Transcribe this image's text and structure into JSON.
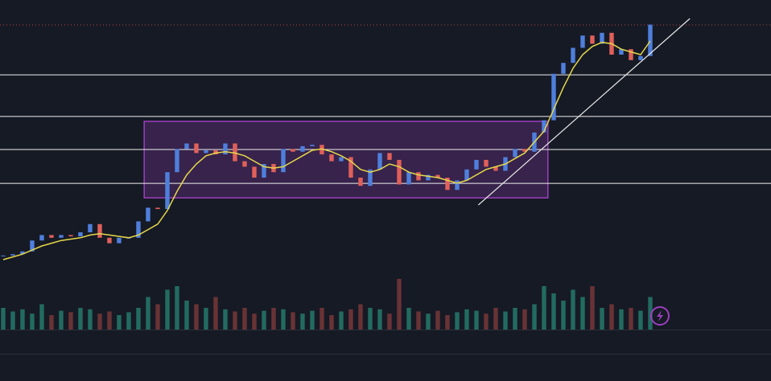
{
  "chart_data": {
    "type": "candlestick",
    "closes": [
      6.5,
      7,
      8,
      12,
      14,
      13,
      14,
      13.5,
      15,
      18,
      13,
      11,
      13,
      13,
      19,
      24,
      23.5,
      37,
      45.5,
      47.5,
      44,
      45,
      43.5,
      47.5,
      41,
      39,
      35,
      40,
      37,
      45.5,
      44.5,
      46.5,
      47,
      43.5,
      41,
      42.5,
      35,
      32,
      38,
      44,
      41.5,
      32.5,
      37,
      34,
      36,
      35,
      30.5,
      34,
      38,
      41.5,
      39,
      37.5,
      42.5,
      45.5,
      44.5,
      51.5,
      56,
      73,
      77,
      82.5,
      87,
      84,
      88,
      80,
      82,
      78,
      79.5,
      91
    ],
    "ma": [
      5,
      6,
      7,
      8.5,
      10,
      11,
      12,
      12.5,
      13,
      14,
      14.5,
      14,
      13.5,
      13,
      14,
      16,
      18,
      23,
      30,
      36,
      40,
      43,
      44,
      44.5,
      44,
      43,
      41,
      39,
      38.5,
      39,
      41,
      43,
      45,
      45.5,
      44.5,
      43,
      41,
      38,
      37,
      38,
      40,
      39,
      37,
      36,
      35.5,
      35,
      34,
      33,
      34,
      36,
      38,
      39,
      40,
      42,
      44,
      48,
      52,
      60,
      68,
      75,
      80,
      83,
      84.5,
      84,
      82,
      81,
      80,
      85
    ],
    "volumes": [
      30,
      25,
      28,
      22,
      35,
      20,
      26,
      24,
      30,
      28,
      22,
      25,
      20,
      24,
      30,
      45,
      35,
      55,
      60,
      40,
      35,
      30,
      45,
      28,
      25,
      30,
      22,
      26,
      30,
      28,
      24,
      22,
      26,
      30,
      20,
      25,
      28,
      35,
      30,
      28,
      22,
      70,
      30,
      25,
      22,
      26,
      20,
      24,
      28,
      26,
      22,
      30,
      25,
      30,
      28,
      35,
      60,
      50,
      40,
      55,
      45,
      60,
      30,
      35,
      28,
      30,
      26,
      45
    ],
    "up_color": "#4f7fdc",
    "down_color": "#e0605a",
    "ma_color": "#e6d84a",
    "xlim": [
      -0.33,
      79.5
    ],
    "ylim": [
      0,
      100
    ],
    "volume_ylim": [
      0,
      100
    ],
    "levels": [
      72.6,
      57.4,
      45.3,
      32.9
    ],
    "level_color": "#f0f0f0",
    "alert_level": 90.9,
    "alert_color": "#b5483f",
    "box": {
      "x": [
        14.6,
        56.4
      ],
      "y": [
        27.6,
        55.6
      ],
      "color": "#9c3fbf"
    },
    "trendline": {
      "x": [
        49.2,
        71.1
      ],
      "y": [
        25,
        93.2
      ],
      "color": "#e8e8e8"
    }
  }
}
